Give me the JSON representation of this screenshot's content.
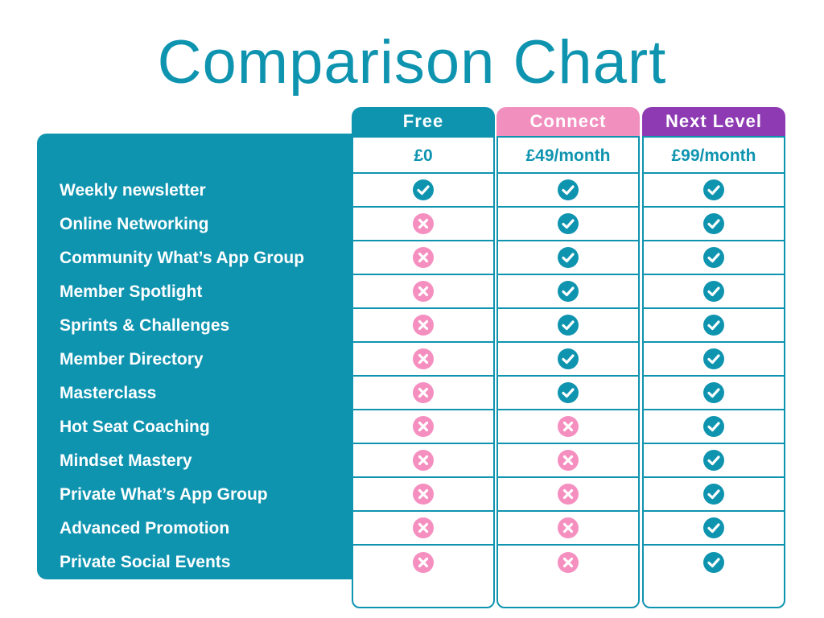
{
  "title": "Comparison Chart",
  "colors": {
    "teal": "#0f94b0",
    "pink": "#f18fbe",
    "purple": "#8e3bb3",
    "cross": "#f58fc0",
    "white": "#ffffff"
  },
  "chart_data": {
    "type": "table",
    "title": "Comparison Chart",
    "features": [
      "Weekly newsletter",
      "Online Networking",
      "Community What’s App Group",
      "Member Spotlight",
      "Sprints & Challenges",
      "Member Directory",
      "Masterclass",
      "Hot Seat Coaching",
      "Mindset Mastery",
      "Private What’s App Group",
      "Advanced Promotion",
      "Private Social Events"
    ],
    "plans": [
      {
        "name": "Free",
        "price": "£0",
        "header_color": "#0f94b0",
        "included": [
          true,
          false,
          false,
          false,
          false,
          false,
          false,
          false,
          false,
          false,
          false,
          false
        ]
      },
      {
        "name": "Connect",
        "price": "£49/month",
        "header_color": "#f18fbe",
        "included": [
          true,
          true,
          true,
          true,
          true,
          true,
          true,
          false,
          false,
          false,
          false,
          false
        ]
      },
      {
        "name": "Next Level",
        "price": "£99/month",
        "header_color": "#8e3bb3",
        "included": [
          true,
          true,
          true,
          true,
          true,
          true,
          true,
          true,
          true,
          true,
          true,
          true
        ]
      }
    ],
    "icons": {
      "included": "check-circle-icon",
      "excluded": "cross-circle-icon"
    }
  }
}
